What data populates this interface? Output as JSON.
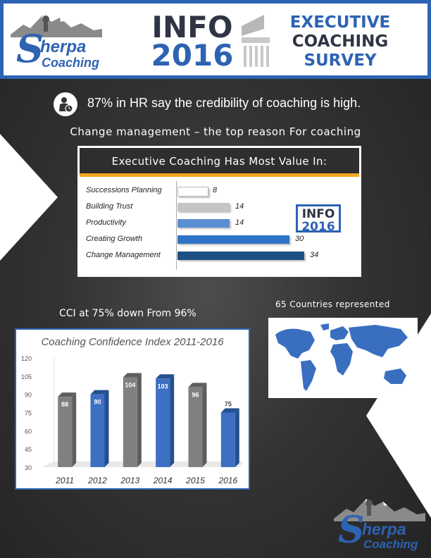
{
  "header": {
    "logo_top": {
      "letter": "S",
      "word1": "herpa",
      "word2": "Coaching"
    },
    "info_line1": "INFO",
    "info_line2": "2016",
    "title_line1": "EXECUTIVE",
    "title_line2": "COACHING",
    "title_line3": "SURVEY"
  },
  "stat": {
    "text": "87% in HR say the credibility of coaching is high.",
    "icon": "person-clock-icon"
  },
  "reason_text": "Change management – the top reason For coaching",
  "value_chart": {
    "title": "Executive Coaching Has Most Value In:",
    "badge_line1": "INFO",
    "badge_line2": "2016",
    "chart_data": {
      "type": "bar",
      "orientation": "horizontal",
      "title": "Executive Coaching Has Most Value In:",
      "categories": [
        "Successions Planning",
        "Building Trust",
        "Productivity",
        "Creating Growth",
        "Change Management"
      ],
      "values": [
        8,
        14,
        14,
        30,
        34
      ],
      "value_labels": [
        "8",
        "14",
        "14",
        "30",
        "34"
      ],
      "colors": [
        "#ffffff",
        "#c4c4c4",
        "#5b8fd4",
        "#2d74c6",
        "#1c4f82"
      ],
      "xlim": [
        0,
        34
      ],
      "grid": false
    }
  },
  "cci_caption": "CCI at 75%  down From 96%",
  "countries_caption": "65 Countries represented",
  "cci_chart": {
    "chart_data": {
      "type": "bar",
      "title": "Coaching Confidence Index  2011-2016",
      "categories": [
        "2011",
        "2012",
        "2013",
        "2014",
        "2015",
        "2016"
      ],
      "values": [
        88,
        90,
        104,
        103,
        96,
        75
      ],
      "value_labels": [
        "88",
        "90",
        "104",
        "103",
        "96",
        "75"
      ],
      "colors": [
        "#808080",
        "#3d6fc2",
        "#808080",
        "#3d6fc2",
        "#808080",
        "#3d6fc2"
      ],
      "yticks": [
        "120",
        "105",
        "90",
        "75",
        "60",
        "45",
        "30"
      ],
      "ylim": [
        30,
        120
      ],
      "grid": false
    }
  },
  "logo_bottom": {
    "letter": "S",
    "word1": "herpa",
    "word2": "Coaching"
  },
  "colors": {
    "brand_blue": "#2d63b3",
    "navy": "#2f3545",
    "orange": "#f5a623",
    "background": "#2a2a2a"
  }
}
